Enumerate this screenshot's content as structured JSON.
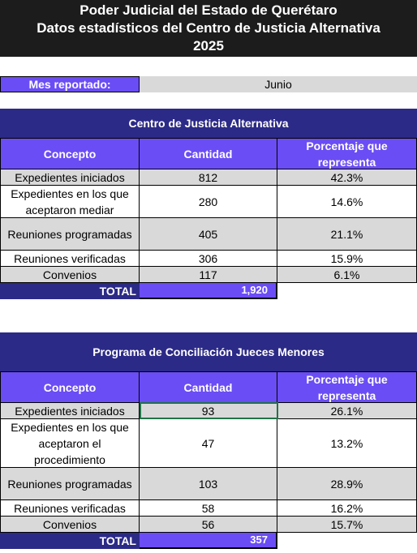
{
  "header": {
    "lines": [
      "Poder Judicial del Estado de Querétaro",
      "Datos estadísticos del Centro de Justicia Alternativa",
      "2025"
    ]
  },
  "month": {
    "label": "Mes reportado:",
    "value": "Junio"
  },
  "tables": [
    {
      "title": "Centro de Justicia Alternativa",
      "columns": [
        "Concepto",
        "Cantidad",
        "Porcentaje que representa"
      ],
      "rows": [
        [
          "Expedientes iniciados",
          "812",
          "42.3%"
        ],
        [
          "Expedientes en los que aceptaron mediar",
          "280",
          "14.6%"
        ],
        [
          "Reuniones programadas",
          "405",
          "21.1%"
        ],
        [
          "Reuniones verificadas",
          "306",
          "15.9%"
        ],
        [
          "Convenios",
          "117",
          "6.1%"
        ]
      ],
      "total": {
        "label": "TOTAL",
        "value": "1,920"
      }
    },
    {
      "title": "Programa de Conciliación Jueces Menores",
      "columns": [
        "Concepto",
        "Cantidad",
        "Porcentaje que representa"
      ],
      "rows": [
        [
          "Expedientes iniciados",
          "93",
          "26.1%"
        ],
        [
          "Expedientes en los que aceptaron el procedimiento",
          "47",
          "13.2%"
        ],
        [
          "Reuniones programadas",
          "103",
          "28.9%"
        ],
        [
          "Reuniones verificadas",
          "58",
          "16.2%"
        ],
        [
          "Convenios",
          "56",
          "15.7%"
        ]
      ],
      "total": {
        "label": "TOTAL",
        "value": "357"
      }
    }
  ]
}
